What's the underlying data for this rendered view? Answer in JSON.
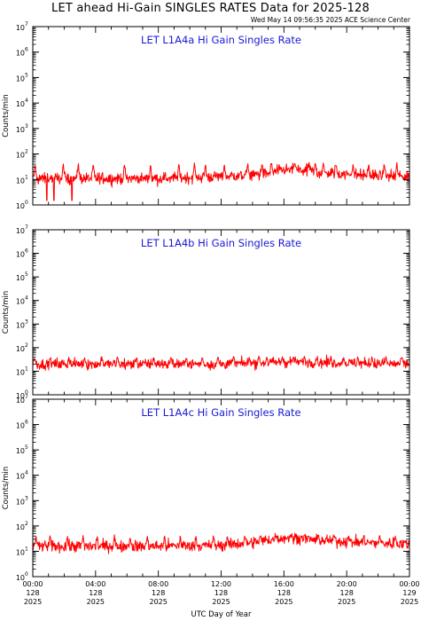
{
  "header": {
    "title": "LET ahead Hi-Gain SINGLES RATES Data for 2025-128",
    "timestamp": "Wed May 14 09:56:35 2025 ACE Science Center"
  },
  "colors": {
    "series": "#ff0000",
    "label": "#1a1ad6",
    "axes": "#000000"
  },
  "chart_data": [
    {
      "type": "line",
      "label": "LET L1A4a Hi Gain Singles Rate",
      "ylabel": "Counts/min",
      "yscale": "log",
      "ylim": [
        1,
        10000000
      ],
      "xlim": [
        0,
        24
      ],
      "y_ticks": [
        {
          "base": "10",
          "exp": "0"
        },
        {
          "base": "10",
          "exp": "1"
        },
        {
          "base": "10",
          "exp": "2"
        },
        {
          "base": "10",
          "exp": "3"
        },
        {
          "base": "10",
          "exp": "4"
        },
        {
          "base": "10",
          "exp": "5"
        },
        {
          "base": "10",
          "exp": "6"
        },
        {
          "base": "10",
          "exp": "7"
        }
      ],
      "baseline": [
        [
          0,
          11
        ],
        [
          2,
          11
        ],
        [
          4,
          11
        ],
        [
          6,
          11
        ],
        [
          8,
          11
        ],
        [
          10,
          12
        ],
        [
          12,
          13
        ],
        [
          14,
          15
        ],
        [
          15,
          17
        ],
        [
          16,
          24
        ],
        [
          17,
          23
        ],
        [
          18,
          19
        ],
        [
          20,
          16
        ],
        [
          22,
          14
        ],
        [
          24,
          13
        ]
      ],
      "spike_hours": [
        0.15,
        1.95,
        2.9,
        3.85,
        5.85,
        7.5,
        9.3,
        10.3,
        11.0,
        12.2,
        13.7,
        14.6,
        15.2,
        16.7,
        17.6,
        18.0,
        18.5,
        19.3,
        20.4,
        21.4,
        22.4,
        23.2
      ],
      "spike_peak": 50,
      "dip_hours": [
        0.9,
        1.35,
        2.5
      ],
      "dip_low": 1.5
    },
    {
      "type": "line",
      "label": "LET L1A4b Hi Gain Singles Rate",
      "ylabel": "Counts/min",
      "yscale": "log",
      "ylim": [
        1,
        10000000
      ],
      "xlim": [
        0,
        24
      ],
      "y_ticks": [
        {
          "base": "10",
          "exp": "0"
        },
        {
          "base": "10",
          "exp": "1"
        },
        {
          "base": "10",
          "exp": "2"
        },
        {
          "base": "10",
          "exp": "3"
        },
        {
          "base": "10",
          "exp": "4"
        },
        {
          "base": "10",
          "exp": "5"
        },
        {
          "base": "10",
          "exp": "6"
        },
        {
          "base": "10",
          "exp": "7"
        }
      ],
      "baseline": [
        [
          0,
          20
        ],
        [
          4,
          20
        ],
        [
          8,
          20
        ],
        [
          12,
          20
        ],
        [
          14,
          22
        ],
        [
          16,
          24
        ],
        [
          18,
          24
        ],
        [
          20,
          22
        ],
        [
          22,
          21
        ],
        [
          24,
          20
        ]
      ],
      "spike_hours": [
        0.1,
        1.1,
        2.3,
        3.3,
        4.4,
        5.4,
        6.6,
        7.7,
        8.8,
        9.8,
        10.8,
        11.8,
        12.8,
        13.8,
        14.4,
        14.9,
        15.9,
        16.6,
        17.3,
        18.1,
        19.0,
        19.8,
        20.7,
        21.6,
        22.5,
        23.5
      ],
      "spike_peak": 45,
      "dip_hours": [],
      "dip_low": 10
    },
    {
      "type": "line",
      "label": "LET L1A4c Hi Gain Singles Rate",
      "ylabel": "Counts/min",
      "yscale": "log",
      "ylim": [
        1,
        10000000
      ],
      "xlim": [
        0,
        24
      ],
      "y_ticks": [
        {
          "base": "10",
          "exp": "0"
        },
        {
          "base": "10",
          "exp": "1"
        },
        {
          "base": "10",
          "exp": "2"
        },
        {
          "base": "10",
          "exp": "3"
        },
        {
          "base": "10",
          "exp": "4"
        },
        {
          "base": "10",
          "exp": "5"
        },
        {
          "base": "10",
          "exp": "6"
        },
        {
          "base": "10",
          "exp": "7"
        }
      ],
      "baseline": [
        [
          0,
          16
        ],
        [
          4,
          16
        ],
        [
          8,
          16
        ],
        [
          12,
          17
        ],
        [
          14,
          22
        ],
        [
          15,
          28
        ],
        [
          16,
          34
        ],
        [
          17,
          34
        ],
        [
          18,
          28
        ],
        [
          19,
          26
        ],
        [
          20,
          24
        ],
        [
          22,
          21
        ],
        [
          24,
          20
        ]
      ],
      "spike_hours": [
        0.2,
        1.1,
        2.2,
        3.2,
        4.1,
        5.2,
        6.2,
        7.3,
        8.4,
        9.4,
        10.4,
        11.5,
        12.4,
        13.5,
        14.5,
        15.5,
        16.4,
        17.3,
        18.2,
        19.2,
        20.1,
        21.1,
        22.1,
        23.1
      ],
      "spike_peak": 45,
      "dip_hours": [],
      "dip_low": 8
    }
  ],
  "x_axis": {
    "label": "UTC Day of Year",
    "ticks": [
      {
        "hour": 0,
        "time": "00:00",
        "day": "128",
        "year": "2025"
      },
      {
        "hour": 4,
        "time": "04:00",
        "day": "128",
        "year": "2025"
      },
      {
        "hour": 8,
        "time": "08:00",
        "day": "128",
        "year": "2025"
      },
      {
        "hour": 12,
        "time": "12:00",
        "day": "128",
        "year": "2025"
      },
      {
        "hour": 16,
        "time": "16:00",
        "day": "128",
        "year": "2025"
      },
      {
        "hour": 20,
        "time": "20:00",
        "day": "128",
        "year": "2025"
      },
      {
        "hour": 24,
        "time": "00:00",
        "day": "129",
        "year": "2025"
      }
    ]
  }
}
